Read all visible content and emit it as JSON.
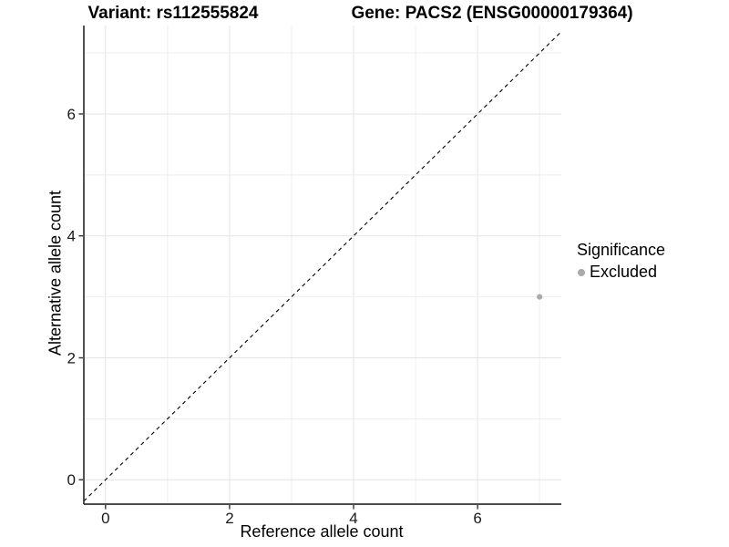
{
  "titles": {
    "left": "Variant: rs112555824",
    "right": "Gene: PACS2 (ENSG00000179364)"
  },
  "axes": {
    "x_label": "Reference allele count",
    "y_label": "Alternative allele count"
  },
  "legend": {
    "title": "Significance",
    "items": [
      {
        "label": "Excluded",
        "color": "#aaaaaa"
      }
    ]
  },
  "colors": {
    "grid_major": "#e4e4e4",
    "grid_minor": "#eeeeee",
    "axis_line": "#333333",
    "tick_label": "#1a1a1a",
    "reference_line": "#000000",
    "point": "#aaaaaa"
  },
  "chart_data": {
    "type": "scatter",
    "title": "Variant: rs112555824 | Gene: PACS2 (ENSG00000179364)",
    "xlabel": "Reference allele count",
    "ylabel": "Alternative allele count",
    "xlim": [
      -0.35,
      7.35
    ],
    "ylim": [
      -0.4,
      7.45
    ],
    "x_ticks": [
      0,
      2,
      4,
      6
    ],
    "y_ticks": [
      0,
      2,
      4,
      6
    ],
    "grid": "on",
    "grid_every": 1,
    "legend_position": "right",
    "reference_line": {
      "type": "identity",
      "style": "dashed"
    },
    "series": [
      {
        "name": "Excluded",
        "color": "#aaaaaa",
        "points": [
          {
            "x": 7,
            "y": 3
          }
        ]
      }
    ]
  }
}
